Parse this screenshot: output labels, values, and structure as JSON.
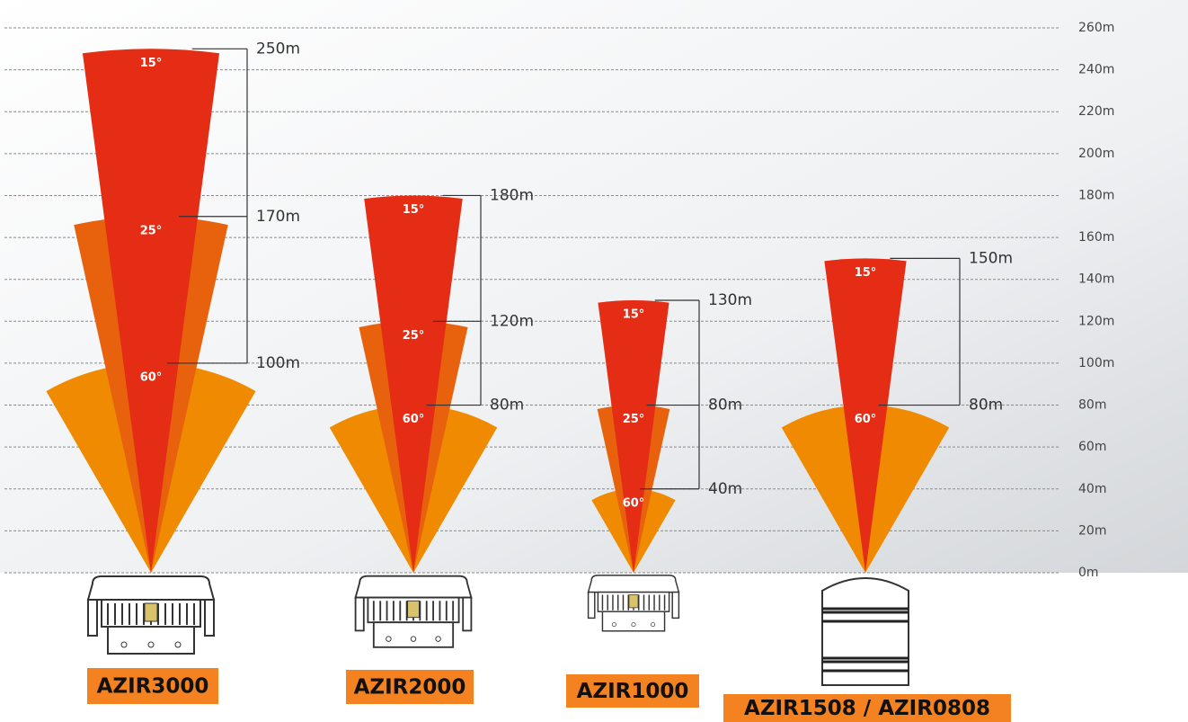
{
  "chart_data": {
    "type": "beam",
    "ylim": [
      0,
      260
    ],
    "yticks": [
      {
        "value": 0,
        "label": "0m"
      },
      {
        "value": 20,
        "label": "20m"
      },
      {
        "value": 40,
        "label": "40m"
      },
      {
        "value": 60,
        "label": "60m"
      },
      {
        "value": 80,
        "label": "80m"
      },
      {
        "value": 100,
        "label": "100m"
      },
      {
        "value": 120,
        "label": "120m"
      },
      {
        "value": 140,
        "label": "140m"
      },
      {
        "value": 160,
        "label": "160m"
      },
      {
        "value": 180,
        "label": "180m"
      },
      {
        "value": 200,
        "label": "200m"
      },
      {
        "value": 220,
        "label": "220m"
      },
      {
        "value": 240,
        "label": "240m"
      },
      {
        "value": 260,
        "label": "260m"
      }
    ],
    "grid": true,
    "products": [
      {
        "name": "AZIR3000",
        "beams": [
          {
            "angle": {
              "value": 15,
              "label": "15°"
            },
            "value": 250,
            "value_label": "250m",
            "color": "#e42d14"
          },
          {
            "angle": {
              "value": 25,
              "label": "25°"
            },
            "value": 170,
            "value_label": "170m",
            "color": "#e8620e"
          },
          {
            "angle": {
              "value": 60,
              "label": "60°"
            },
            "value": 100,
            "value_label": "100m",
            "color": "#f08a00"
          }
        ]
      },
      {
        "name": "AZIR2000",
        "beams": [
          {
            "angle": {
              "value": 15,
              "label": "15°"
            },
            "value": 180,
            "value_label": "180m",
            "color": "#e42d14"
          },
          {
            "angle": {
              "value": 25,
              "label": "25°"
            },
            "value": 120,
            "value_label": "120m",
            "color": "#e8620e"
          },
          {
            "angle": {
              "value": 60,
              "label": "60°"
            },
            "value": 80,
            "value_label": "80m",
            "color": "#f08a00"
          }
        ]
      },
      {
        "name": "AZIR1000",
        "beams": [
          {
            "angle": {
              "value": 15,
              "label": "15°"
            },
            "value": 130,
            "value_label": "130m",
            "color": "#e42d14"
          },
          {
            "angle": {
              "value": 25,
              "label": "25°"
            },
            "value": 80,
            "value_label": "80m",
            "color": "#e8620e"
          },
          {
            "angle": {
              "value": 60,
              "label": "60°"
            },
            "value": 40,
            "value_label": "40m",
            "color": "#f08a00"
          }
        ]
      },
      {
        "name": "AZIR1508 / AZIR0808",
        "beams": [
          {
            "angle": {
              "value": 15,
              "label": "15°"
            },
            "value": 150,
            "value_label": "150m",
            "color": "#e42d14"
          },
          {
            "angle": {
              "value": 60,
              "label": "60°"
            },
            "value": 80,
            "value_label": "80m",
            "color": "#f08a00"
          }
        ]
      }
    ]
  }
}
